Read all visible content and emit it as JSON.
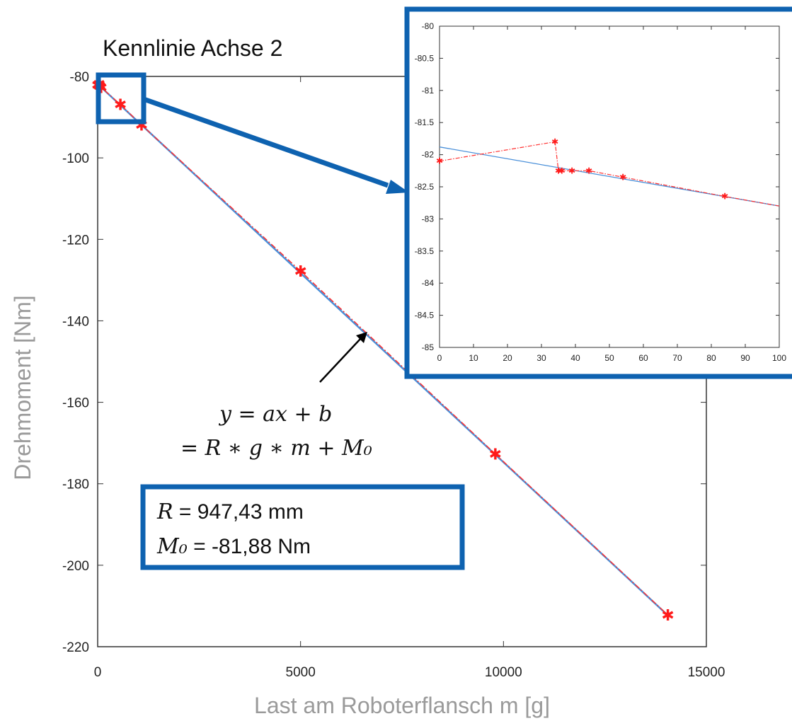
{
  "colors": {
    "fit_line": "#4a90d9",
    "data_line": "#ff3030",
    "marker": "#ff1a1a",
    "highlight_box": "#0e62b0",
    "axis_label": "#9a9a9a"
  },
  "formula": {
    "line1": "y = ax + b",
    "line2": "= R ∗ g ∗ m + M₀"
  },
  "params": {
    "r_symbol": "R",
    "r_value": " = 947,43 mm",
    "m_symbol": "M₀",
    "m_value": " = -81,88 Nm"
  },
  "chart_data": [
    {
      "type": "line",
      "title": "Kennlinie Achse 2",
      "xlabel": "Last am Roboterflansch m [g]",
      "ylabel": "Drehmoment [Nm]",
      "xlim": [
        0,
        15000
      ],
      "ylim": [
        -220,
        -80
      ],
      "xticks": [
        0,
        5000,
        10000,
        15000
      ],
      "yticks": [
        -80,
        -100,
        -120,
        -140,
        -160,
        -180,
        -200,
        -220
      ],
      "series": [
        {
          "style": "dash-dot with star markers",
          "color": "#ff3030",
          "x": [
            0,
            34,
            35,
            36,
            39,
            44,
            54,
            84,
            560,
            1080,
            5000,
            9800,
            14050
          ],
          "y": [
            -82.1,
            -81.8,
            -82.25,
            -82.25,
            -82.25,
            -82.25,
            -82.35,
            -82.65,
            -86.9,
            -91.9,
            -127.8,
            -172.7,
            -212.2
          ]
        },
        {
          "style": "solid fit line",
          "color": "#4a90d9",
          "x": [
            0,
            14050
          ],
          "y": [
            -81.88,
            -212.3
          ]
        }
      ],
      "grid": false
    },
    {
      "type": "line",
      "title": "",
      "xlim": [
        0,
        100
      ],
      "ylim": [
        -85,
        -80
      ],
      "xticks": [
        0,
        10,
        20,
        30,
        40,
        50,
        60,
        70,
        80,
        90,
        100
      ],
      "yticks": [
        "-80",
        "-80.5",
        "-81",
        "-81.5",
        "-82",
        "-82.5",
        "-83",
        "-83.5",
        "-84",
        "-84.5",
        "-85"
      ],
      "series": [
        {
          "style": "dash-dot with star markers",
          "color": "#ff3030",
          "x": [
            0,
            34,
            35,
            36,
            39,
            44,
            54,
            84,
            100
          ],
          "y": [
            -82.1,
            -81.8,
            -82.25,
            -82.25,
            -82.25,
            -82.25,
            -82.35,
            -82.65,
            -82.8
          ]
        },
        {
          "style": "solid fit line",
          "color": "#4a90d9",
          "x": [
            0,
            100
          ],
          "y": [
            -81.88,
            -82.8
          ]
        }
      ],
      "grid": false
    }
  ]
}
